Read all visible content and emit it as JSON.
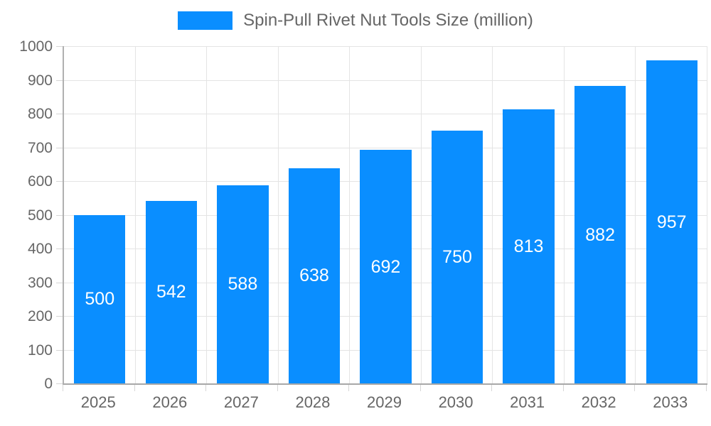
{
  "chart_data": {
    "type": "bar",
    "title": "Spin-Pull Rivet Nut Tools Size (million)",
    "legend": {
      "label": "Spin-Pull Rivet Nut Tools Size (million)",
      "position": "top"
    },
    "categories": [
      "2025",
      "2026",
      "2027",
      "2028",
      "2029",
      "2030",
      "2031",
      "2032",
      "2033"
    ],
    "series": [
      {
        "name": "Spin-Pull Rivet Nut Tools Size (million)",
        "values": [
          500,
          542,
          588,
          638,
          692,
          750,
          813,
          882,
          957
        ]
      }
    ],
    "xlabel": "",
    "ylabel": "",
    "ylim": [
      0,
      1000
    ],
    "ytick_step": 100,
    "grid": true,
    "colors": {
      "bar": "#0A8EFF",
      "bar_label_text": "#ffffff",
      "axis_text": "#666666",
      "gridline": "#e4e4e4",
      "axis_line": "#a8a8a8"
    }
  }
}
